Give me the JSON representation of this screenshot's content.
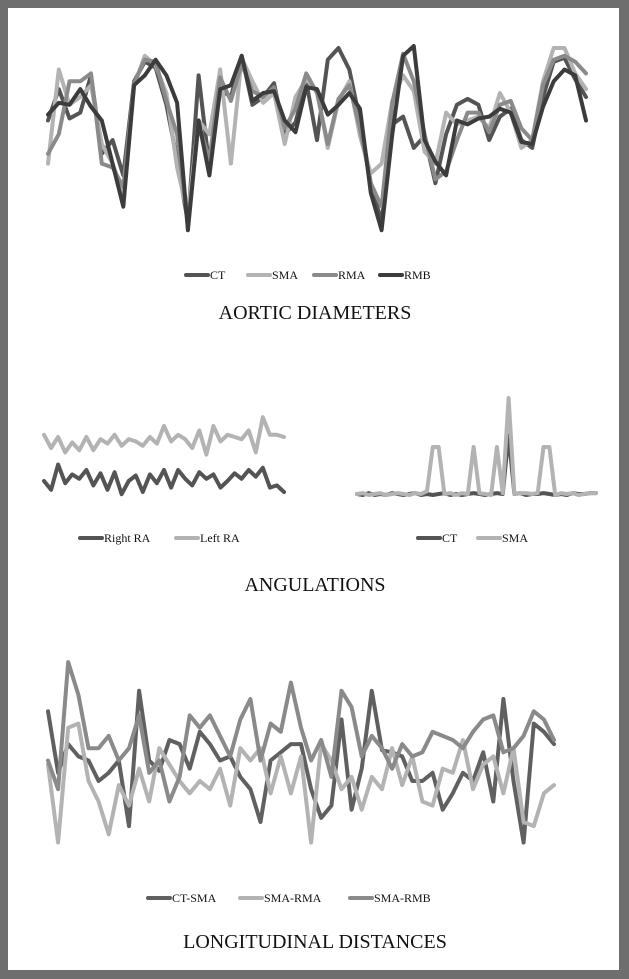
{
  "sections": {
    "aortic": {
      "title": "AORTIC DIAMETERS",
      "chart_data": {
        "type": "line",
        "x": [
          1,
          2,
          3,
          4,
          5,
          6,
          7,
          8,
          9,
          10,
          11,
          12,
          13,
          14,
          15,
          16,
          17,
          18,
          19,
          20,
          21,
          22,
          23,
          24,
          25,
          26,
          27,
          28,
          29,
          30,
          31,
          32,
          33,
          34,
          35,
          36,
          37,
          38,
          39,
          40,
          41,
          42,
          43,
          44,
          45,
          46,
          47,
          48,
          49,
          50,
          51
        ],
        "legend_position": "bottom",
        "series": [
          {
            "name": "CT",
            "color": "#545454",
            "values": [
              0.62,
              0.78,
              0.63,
              0.66,
              0.85,
              0.45,
              0.52,
              0.34,
              0.82,
              0.92,
              0.89,
              0.7,
              0.42,
              0.1,
              0.85,
              0.38,
              0.78,
              0.74,
              0.95,
              0.7,
              0.74,
              0.81,
              0.55,
              0.61,
              0.82,
              0.52,
              0.93,
              0.99,
              0.88,
              0.62,
              0.3,
              0.1,
              0.6,
              0.64,
              0.48,
              0.54,
              0.3,
              0.55,
              0.7,
              0.73,
              0.7,
              0.52,
              0.64,
              0.68,
              0.52,
              0.48,
              0.74,
              0.92,
              0.94,
              0.83,
              0.74
            ]
          },
          {
            "name": "SMA",
            "color": "#b3b3b3",
            "values": [
              0.4,
              0.88,
              0.7,
              0.74,
              0.8,
              0.5,
              0.4,
              0.25,
              0.8,
              0.95,
              0.9,
              0.76,
              0.38,
              0.14,
              0.62,
              0.55,
              0.88,
              0.4,
              0.94,
              0.82,
              0.71,
              0.76,
              0.5,
              0.74,
              0.83,
              0.77,
              0.48,
              0.72,
              0.82,
              0.54,
              0.35,
              0.4,
              0.72,
              0.85,
              0.77,
              0.46,
              0.4,
              0.66,
              0.6,
              0.62,
              0.64,
              0.58,
              0.76,
              0.66,
              0.48,
              0.52,
              0.82,
              0.99,
              0.99,
              0.86,
              0.78
            ]
          },
          {
            "name": "RMA",
            "color": "#8a8a8a",
            "values": [
              0.45,
              0.55,
              0.82,
              0.82,
              0.86,
              0.4,
              0.38,
              0.28,
              0.81,
              0.93,
              0.92,
              0.72,
              0.55,
              0.09,
              0.6,
              0.42,
              0.84,
              0.72,
              0.91,
              0.77,
              0.74,
              0.79,
              0.58,
              0.68,
              0.86,
              0.76,
              0.5,
              0.73,
              0.8,
              0.58,
              0.3,
              0.18,
              0.71,
              0.96,
              0.82,
              0.55,
              0.32,
              0.36,
              0.52,
              0.66,
              0.66,
              0.56,
              0.7,
              0.72,
              0.58,
              0.52,
              0.8,
              0.93,
              0.95,
              0.92,
              0.86
            ]
          },
          {
            "name": "RMB",
            "color": "#3c3c3c",
            "values": [
              0.65,
              0.71,
              0.7,
              0.78,
              0.69,
              0.62,
              0.4,
              0.18,
              0.8,
              0.85,
              0.93,
              0.85,
              0.71,
              0.06,
              0.62,
              0.34,
              0.78,
              0.8,
              0.95,
              0.72,
              0.76,
              0.77,
              0.62,
              0.56,
              0.79,
              0.78,
              0.65,
              0.7,
              0.76,
              0.68,
              0.25,
              0.06,
              0.55,
              0.95,
              1.0,
              0.52,
              0.41,
              0.34,
              0.62,
              0.6,
              0.63,
              0.64,
              0.68,
              0.66,
              0.51,
              0.5,
              0.69,
              0.82,
              0.88,
              0.85,
              0.62
            ]
          }
        ]
      }
    },
    "angulations": {
      "title": "ANGULATIONS",
      "left": {
        "chart_data": {
          "type": "line",
          "x": [
            1,
            2,
            3,
            4,
            5,
            6,
            7,
            8,
            9,
            10,
            11,
            12,
            13,
            14,
            15,
            16,
            17,
            18,
            19,
            20,
            21,
            22,
            23,
            24,
            25,
            26,
            27,
            28,
            29,
            30,
            31,
            32,
            33,
            34,
            35
          ],
          "legend_position": "bottom",
          "series": [
            {
              "name": "Right RA",
              "color": "#545454",
              "values": [
                0.2,
                0.12,
                0.35,
                0.18,
                0.26,
                0.22,
                0.3,
                0.16,
                0.27,
                0.12,
                0.28,
                0.08,
                0.2,
                0.25,
                0.1,
                0.26,
                0.18,
                0.3,
                0.14,
                0.3,
                0.22,
                0.16,
                0.28,
                0.22,
                0.26,
                0.14,
                0.2,
                0.27,
                0.22,
                0.3,
                0.24,
                0.32,
                0.14,
                0.16,
                0.1
              ]
            },
            {
              "name": "Left RA",
              "color": "#b3b3b3",
              "values": [
                0.62,
                0.5,
                0.6,
                0.46,
                0.55,
                0.48,
                0.6,
                0.48,
                0.58,
                0.54,
                0.62,
                0.52,
                0.58,
                0.56,
                0.52,
                0.6,
                0.54,
                0.7,
                0.56,
                0.62,
                0.58,
                0.5,
                0.66,
                0.44,
                0.7,
                0.56,
                0.62,
                0.6,
                0.58,
                0.66,
                0.46,
                0.78,
                0.62,
                0.62,
                0.6
              ]
            }
          ]
        }
      },
      "right": {
        "chart_data": {
          "type": "line",
          "x": [
            1,
            2,
            3,
            4,
            5,
            6,
            7,
            8,
            9,
            10,
            11,
            12,
            13,
            14,
            15,
            16,
            17,
            18,
            19,
            20,
            21,
            22,
            23,
            24,
            25,
            26,
            27,
            28,
            29,
            30,
            31,
            32,
            33,
            34,
            35,
            36,
            37,
            38,
            39,
            40,
            41,
            42
          ],
          "legend_position": "bottom",
          "series": [
            {
              "name": "CT",
              "color": "#545454",
              "values": [
                0.02,
                0.01,
                0.03,
                0.01,
                0.02,
                0.01,
                0.03,
                0.02,
                0.01,
                0.02,
                0.03,
                0.01,
                0.02,
                0.01,
                0.02,
                0.03,
                0.01,
                0.02,
                0.01,
                0.02,
                0.03,
                0.02,
                0.01,
                0.02,
                0.03,
                0.02,
                0.62,
                0.02,
                0.03,
                0.01,
                0.02,
                0.02,
                0.03,
                0.02,
                0.01,
                0.02,
                0.01,
                0.03,
                0.02,
                0.02,
                0.03,
                0.03
              ]
            },
            {
              "name": "SMA",
              "color": "#b3b3b3",
              "values": [
                0.02,
                0.03,
                0.01,
                0.02,
                0.03,
                0.01,
                0.02,
                0.03,
                0.02,
                0.01,
                0.03,
                0.02,
                0.05,
                0.5,
                0.5,
                0.02,
                0.03,
                0.01,
                0.03,
                0.02,
                0.5,
                0.03,
                0.02,
                0.01,
                0.5,
                0.03,
                1.0,
                0.02,
                0.03,
                0.03,
                0.02,
                0.03,
                0.5,
                0.5,
                0.01,
                0.03,
                0.02,
                0.03,
                0.01,
                0.02,
                0.03,
                0.03
              ]
            }
          ]
        }
      }
    },
    "longitudinal": {
      "title": "LONGITUDINAL DISTANCES",
      "chart_data": {
        "type": "line",
        "x": [
          1,
          2,
          3,
          4,
          5,
          6,
          7,
          8,
          9,
          10,
          11,
          12,
          13,
          14,
          15,
          16,
          17,
          18,
          19,
          20,
          21,
          22,
          23,
          24,
          25,
          26,
          27,
          28,
          29,
          30,
          31,
          32,
          33,
          34,
          35,
          36,
          37,
          38,
          39,
          40,
          41,
          42,
          43,
          44,
          45,
          46,
          47,
          48,
          49,
          50,
          51
        ],
        "legend_position": "bottom",
        "series": [
          {
            "name": "CT-SMA",
            "color": "#606060",
            "values": [
              0.74,
              0.44,
              0.58,
              0.52,
              0.5,
              0.4,
              0.44,
              0.5,
              0.18,
              0.84,
              0.5,
              0.45,
              0.6,
              0.58,
              0.46,
              0.64,
              0.58,
              0.5,
              0.52,
              0.42,
              0.36,
              0.2,
              0.5,
              0.54,
              0.58,
              0.58,
              0.36,
              0.22,
              0.28,
              0.7,
              0.26,
              0.46,
              0.84,
              0.55,
              0.54,
              0.52,
              0.4,
              0.4,
              0.44,
              0.26,
              0.34,
              0.44,
              0.4,
              0.54,
              0.3,
              0.8,
              0.4,
              0.1,
              0.68,
              0.64,
              0.58
            ]
          },
          {
            "name": "SMA-RMA",
            "color": "#b3b3b3",
            "values": [
              0.48,
              0.1,
              0.66,
              0.68,
              0.4,
              0.3,
              0.14,
              0.38,
              0.28,
              0.46,
              0.3,
              0.56,
              0.48,
              0.4,
              0.34,
              0.4,
              0.36,
              0.46,
              0.28,
              0.56,
              0.5,
              0.56,
              0.34,
              0.52,
              0.34,
              0.52,
              0.1,
              0.58,
              0.5,
              0.36,
              0.42,
              0.26,
              0.42,
              0.36,
              0.56,
              0.38,
              0.52,
              0.3,
              0.28,
              0.46,
              0.44,
              0.6,
              0.36,
              0.48,
              0.52,
              0.34,
              0.56,
              0.2,
              0.18,
              0.34,
              0.38
            ]
          },
          {
            "name": "SMA-RMB",
            "color": "#8a8a8a",
            "values": [
              0.5,
              0.36,
              0.98,
              0.82,
              0.56,
              0.56,
              0.62,
              0.5,
              0.56,
              0.72,
              0.44,
              0.5,
              0.3,
              0.42,
              0.72,
              0.66,
              0.72,
              0.62,
              0.52,
              0.7,
              0.8,
              0.5,
              0.68,
              0.64,
              0.88,
              0.66,
              0.5,
              0.6,
              0.42,
              0.84,
              0.76,
              0.52,
              0.62,
              0.56,
              0.46,
              0.58,
              0.52,
              0.54,
              0.64,
              0.62,
              0.6,
              0.56,
              0.64,
              0.7,
              0.72,
              0.54,
              0.56,
              0.62,
              0.74,
              0.7,
              0.6
            ]
          }
        ]
      }
    }
  }
}
